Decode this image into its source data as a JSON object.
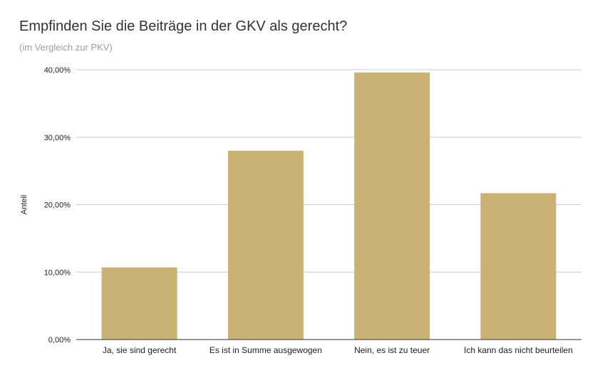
{
  "chart_data": {
    "type": "bar",
    "title": "Empfinden Sie die Beiträge in der GKV als gerecht?",
    "subtitle": "(im Vergleich zur PKV)",
    "xlabel": "",
    "ylabel": "Anteil",
    "categories": [
      "Ja, sie sind gerecht",
      "Es ist in Summe ausgewogen",
      "Nein, es ist zu teuer",
      "Ich kann das nicht beurteilen"
    ],
    "values": [
      10.7,
      28.0,
      39.6,
      21.7
    ],
    "ylim": [
      0,
      40
    ],
    "yticks": [
      0,
      10,
      20,
      30,
      40
    ],
    "ytick_labels": [
      "0,00%",
      "10,00%",
      "20,00%",
      "30,00%",
      "40,00%"
    ],
    "grid": true,
    "legend": "none",
    "colors": {
      "bar": "#c9b274",
      "grid": "#cccccc",
      "axis": "#333333",
      "text": "#222222"
    }
  }
}
